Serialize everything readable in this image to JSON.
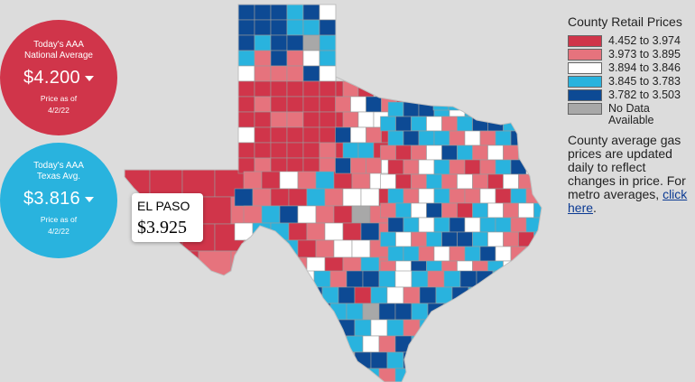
{
  "national": {
    "caption": [
      "Today's AAA",
      "National Average"
    ],
    "price": "$4.200",
    "asof_label": "Price as of",
    "asof_date": "4/2/22",
    "color": "#d0354a"
  },
  "texas": {
    "caption": [
      "Today's AAA",
      "Texas Avg."
    ],
    "price": "$3.816",
    "asof_label": "Price as of",
    "asof_date": "4/2/22",
    "color": "#29b3de"
  },
  "callout": {
    "name": "EL PASO",
    "price": "$3.925"
  },
  "legend": {
    "title": "County Retail Prices",
    "items": [
      {
        "label": "4.452 to 3.974",
        "color": "#d0354a"
      },
      {
        "label": "3.973 to 3.895",
        "color": "#e6737d"
      },
      {
        "label": "3.894 to 3.846",
        "color": "#ffffff"
      },
      {
        "label": "3.845 to 3.783",
        "color": "#29b3de"
      },
      {
        "label": "3.782 to 3.503",
        "color": "#0d4a94"
      },
      {
        "label": "No Data Available",
        "color": "#a8a8a8"
      }
    ]
  },
  "note": {
    "text": "County average gas prices are updated daily to reflect changes in price. For metro averages, ",
    "link": "click here",
    "end": "."
  },
  "map": {
    "palette": [
      "#d0354a",
      "#e6737d",
      "#ffffff",
      "#29b3de",
      "#0d4a94",
      "#a8a8a8"
    ],
    "panhandle_pattern": [
      4,
      4,
      4,
      3,
      4,
      2,
      4,
      4,
      4,
      3,
      3,
      4,
      4,
      3,
      4,
      4,
      5,
      3,
      3,
      1,
      4,
      1,
      2,
      3,
      2,
      1,
      1,
      1,
      4,
      2,
      2,
      3,
      3,
      3,
      2,
      3,
      4,
      3,
      1,
      2,
      5,
      0,
      0,
      1,
      3,
      3,
      1,
      0,
      1,
      0,
      0,
      2,
      2,
      0
    ],
    "west_pattern": [
      0,
      0,
      0,
      0,
      0,
      0,
      0,
      0,
      1,
      0,
      0,
      0,
      0,
      0,
      0,
      0,
      1,
      1,
      0,
      0,
      0,
      2,
      0,
      0,
      0,
      0,
      0,
      0,
      0,
      0,
      0,
      0,
      0,
      1,
      0,
      0,
      1,
      0,
      0,
      0
    ],
    "central_pattern": [
      1,
      0,
      2,
      1,
      3,
      0,
      1,
      2,
      4,
      1,
      0,
      0,
      3,
      1,
      2,
      2,
      0,
      1,
      3,
      4,
      2,
      1,
      0,
      5,
      1,
      2,
      3,
      3,
      0,
      1,
      2,
      0,
      4,
      1,
      1,
      2,
      3,
      0,
      1,
      2,
      2,
      1,
      0,
      3,
      4,
      1,
      2,
      0,
      1,
      3,
      1,
      2,
      4,
      0,
      1,
      2,
      1,
      1,
      3,
      0,
      2,
      4
    ],
    "east_pattern": [
      3,
      4,
      4,
      3,
      2,
      3,
      4,
      2,
      3,
      3,
      1,
      3,
      4,
      3,
      2,
      1,
      3,
      4,
      4,
      3,
      2,
      1,
      0,
      3,
      4,
      3,
      3,
      1,
      2,
      1,
      3,
      4,
      2,
      1,
      1,
      0,
      1,
      2,
      4,
      3,
      1,
      2,
      1,
      3,
      2,
      1,
      0,
      1,
      2,
      3,
      1,
      0,
      1,
      3,
      4,
      2,
      1,
      2,
      0,
      1,
      3,
      1,
      2,
      1,
      0,
      2,
      1,
      2,
      4,
      3,
      1,
      2,
      3,
      1,
      1,
      2,
      0,
      3,
      1,
      2,
      1,
      3,
      2,
      4,
      1,
      0,
      3,
      2,
      1,
      2
    ],
    "south_pattern": [
      2,
      3,
      1,
      4,
      4,
      3,
      2,
      3,
      1,
      3,
      4,
      4,
      3,
      3,
      2,
      3,
      1,
      4,
      3,
      4,
      0,
      3,
      2,
      1,
      4,
      3,
      4,
      3,
      1,
      3,
      4,
      0,
      3,
      4,
      4,
      3,
      3,
      5,
      4,
      4,
      3,
      4,
      4,
      0,
      4,
      3,
      1,
      3
    ]
  }
}
